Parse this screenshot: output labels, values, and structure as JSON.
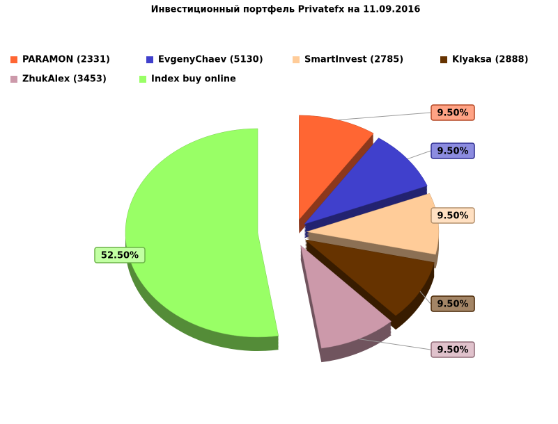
{
  "chart_data": {
    "type": "pie",
    "title": "Инвестиционный портфель Privatefx на 11.09.2016",
    "categories": [
      "PARAMON (2331)",
      "EvgenyChaev (5130)",
      "SmartInvest (2785)",
      "Klyaksa (2888)",
      "ZhukAlex (3453)",
      "Index buy online"
    ],
    "values": [
      9.5,
      9.5,
      9.5,
      9.5,
      9.5,
      52.5
    ],
    "value_labels": [
      "9.50%",
      "9.50%",
      "9.50%",
      "9.50%",
      "9.50%",
      "52.50%"
    ],
    "colors": [
      "#ff6633",
      "#4040cc",
      "#ffcc99",
      "#663300",
      "#cc99aa",
      "#99ff66"
    ],
    "legend": "top-left"
  }
}
